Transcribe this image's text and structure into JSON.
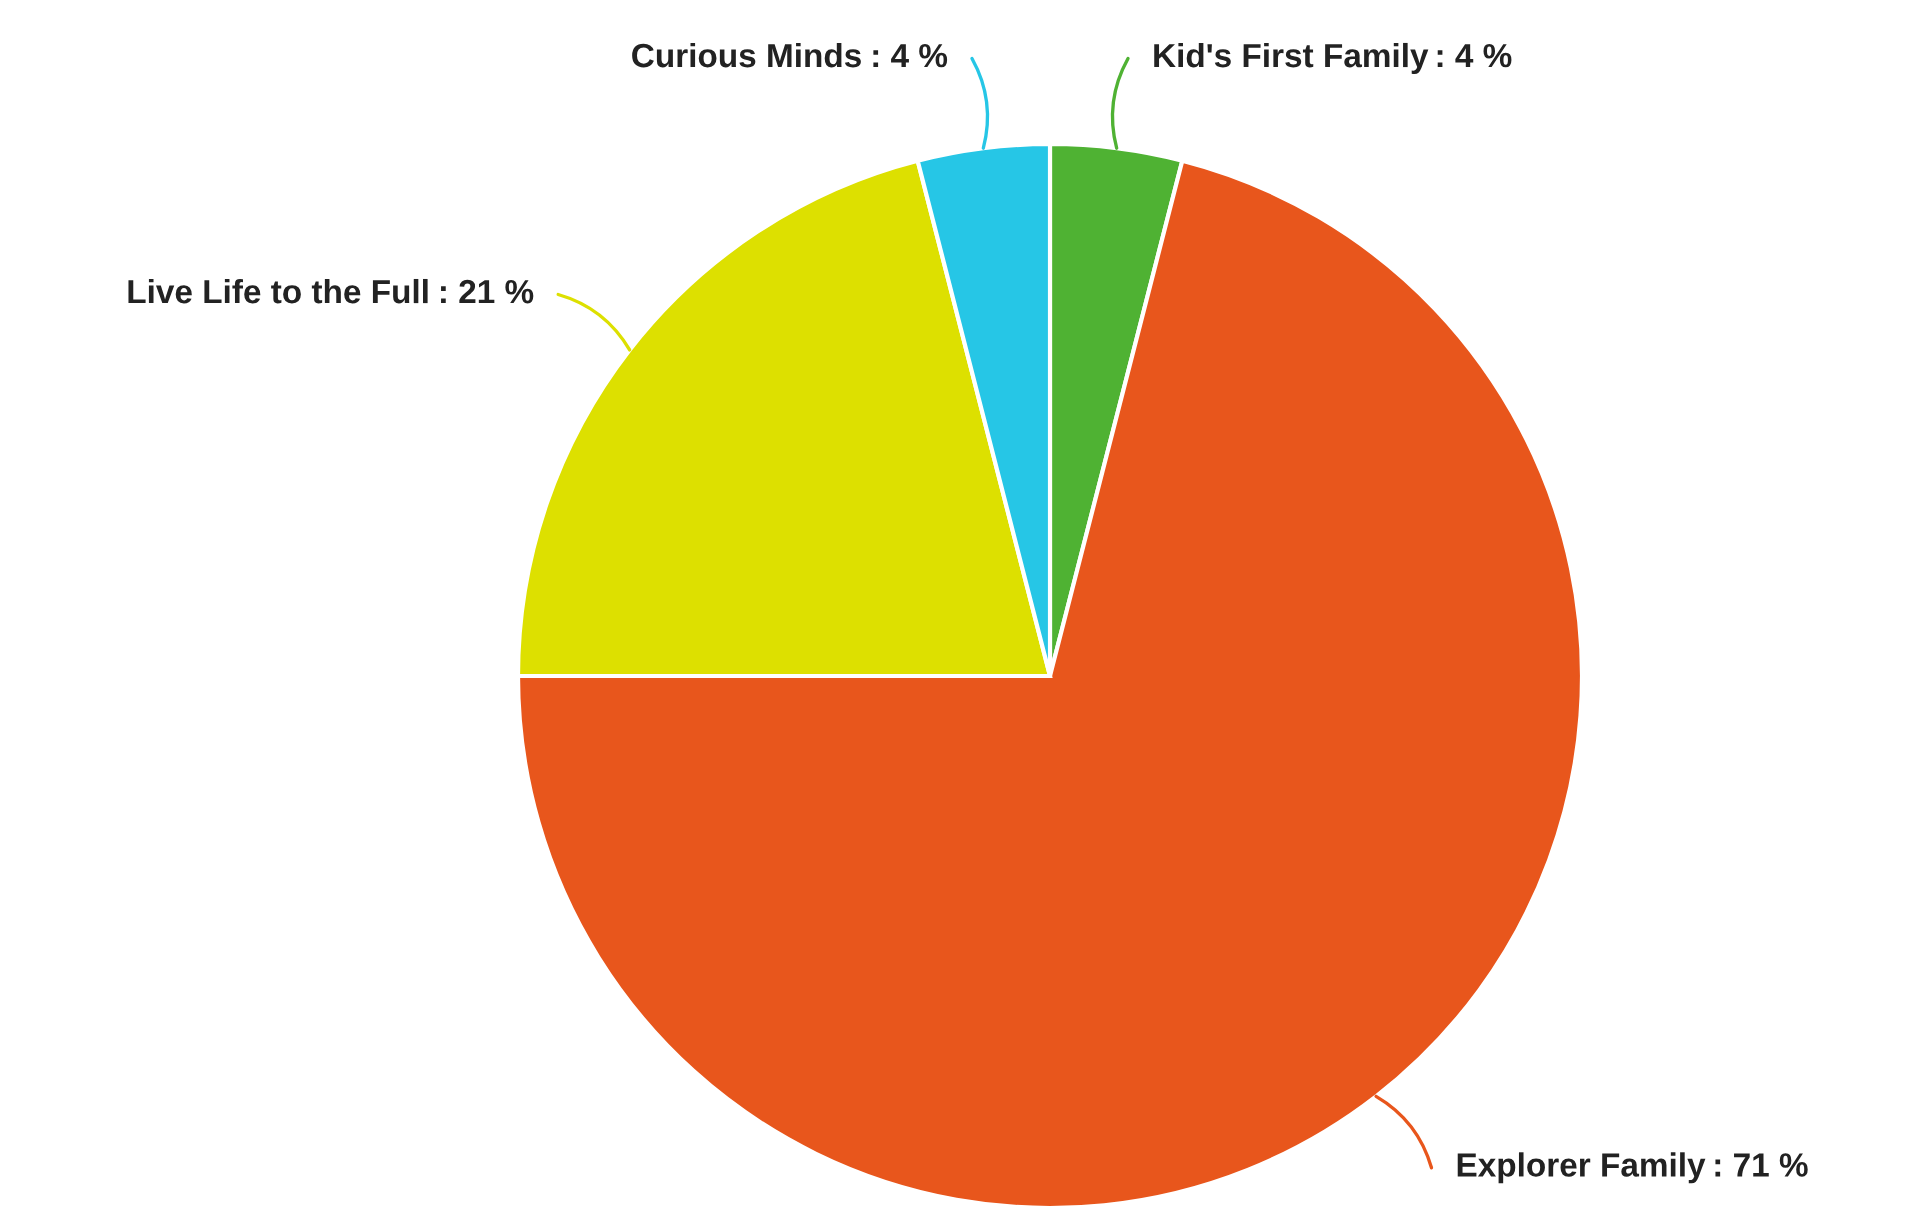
{
  "chart_data": {
    "type": "pie",
    "categories": [
      "Kid's First Family",
      "Explorer Family",
      "Live Life to the Full",
      "Curious Minds"
    ],
    "values": [
      4,
      71,
      21,
      4
    ],
    "colors": [
      "#4fb233",
      "#e8561c",
      "#dde000",
      "#26c6e6"
    ],
    "value_labels": [
      ": 4 %",
      ": 71 %",
      ": 21 %",
      ": 4 %"
    ]
  }
}
